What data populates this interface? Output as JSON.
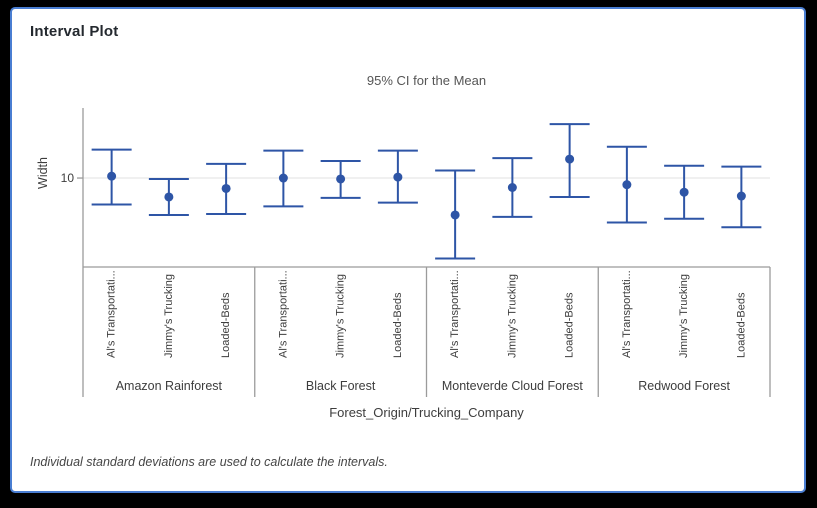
{
  "window": {
    "title": "Interval Plot",
    "background": "#ffffff",
    "border_color": "#4a7ed2",
    "page_background": "#000000"
  },
  "chart_data": {
    "type": "interval",
    "title": "95% CI for the Mean",
    "xlabel": "Forest_Origin/Trucking_Company",
    "ylabel": "Width",
    "footnote": "Individual standard deviations are used to calculate the intervals.",
    "ylim": [
      5.3,
      13.7
    ],
    "yticks": [
      10
    ],
    "grid": "horizontal gridline at each y tick",
    "legend": "none",
    "interval_color": "#2e55a6",
    "axis_color": "#9b9b9b",
    "gridline_color": "#e8e8e8",
    "groups": [
      "Amazon Rainforest",
      "Black Forest",
      "Monteverde Cloud Forest",
      "Redwood Forest"
    ],
    "subcategories": [
      "Al's Transportati...",
      "Jimmy's Trucking",
      "Loaded-Beds"
    ],
    "points": [
      {
        "group": "Amazon Rainforest",
        "company": "Al's Transportati...",
        "mean": 10.1,
        "ci_low": 8.6,
        "ci_high": 11.5
      },
      {
        "group": "Amazon Rainforest",
        "company": "Jimmy's Trucking",
        "mean": 9.0,
        "ci_low": 8.05,
        "ci_high": 9.95
      },
      {
        "group": "Amazon Rainforest",
        "company": "Loaded-Beds",
        "mean": 9.45,
        "ci_low": 8.1,
        "ci_high": 10.75
      },
      {
        "group": "Black Forest",
        "company": "Al's Transportati...",
        "mean": 10.0,
        "ci_low": 8.5,
        "ci_high": 11.45
      },
      {
        "group": "Black Forest",
        "company": "Jimmy's Trucking",
        "mean": 9.95,
        "ci_low": 8.95,
        "ci_high": 10.9
      },
      {
        "group": "Black Forest",
        "company": "Loaded-Beds",
        "mean": 10.05,
        "ci_low": 8.7,
        "ci_high": 11.45
      },
      {
        "group": "Monteverde Cloud Forest",
        "company": "Al's Transportati...",
        "mean": 8.05,
        "ci_low": 5.75,
        "ci_high": 10.4
      },
      {
        "group": "Monteverde Cloud Forest",
        "company": "Jimmy's Trucking",
        "mean": 9.5,
        "ci_low": 7.95,
        "ci_high": 11.05
      },
      {
        "group": "Monteverde Cloud Forest",
        "company": "Loaded-Beds",
        "mean": 11.0,
        "ci_low": 9.0,
        "ci_high": 12.85
      },
      {
        "group": "Redwood Forest",
        "company": "Al's Transportati...",
        "mean": 9.65,
        "ci_low": 7.65,
        "ci_high": 11.65
      },
      {
        "group": "Redwood Forest",
        "company": "Jimmy's Trucking",
        "mean": 9.25,
        "ci_low": 7.85,
        "ci_high": 10.65
      },
      {
        "group": "Redwood Forest",
        "company": "Loaded-Beds",
        "mean": 9.05,
        "ci_low": 7.4,
        "ci_high": 10.6
      }
    ]
  }
}
